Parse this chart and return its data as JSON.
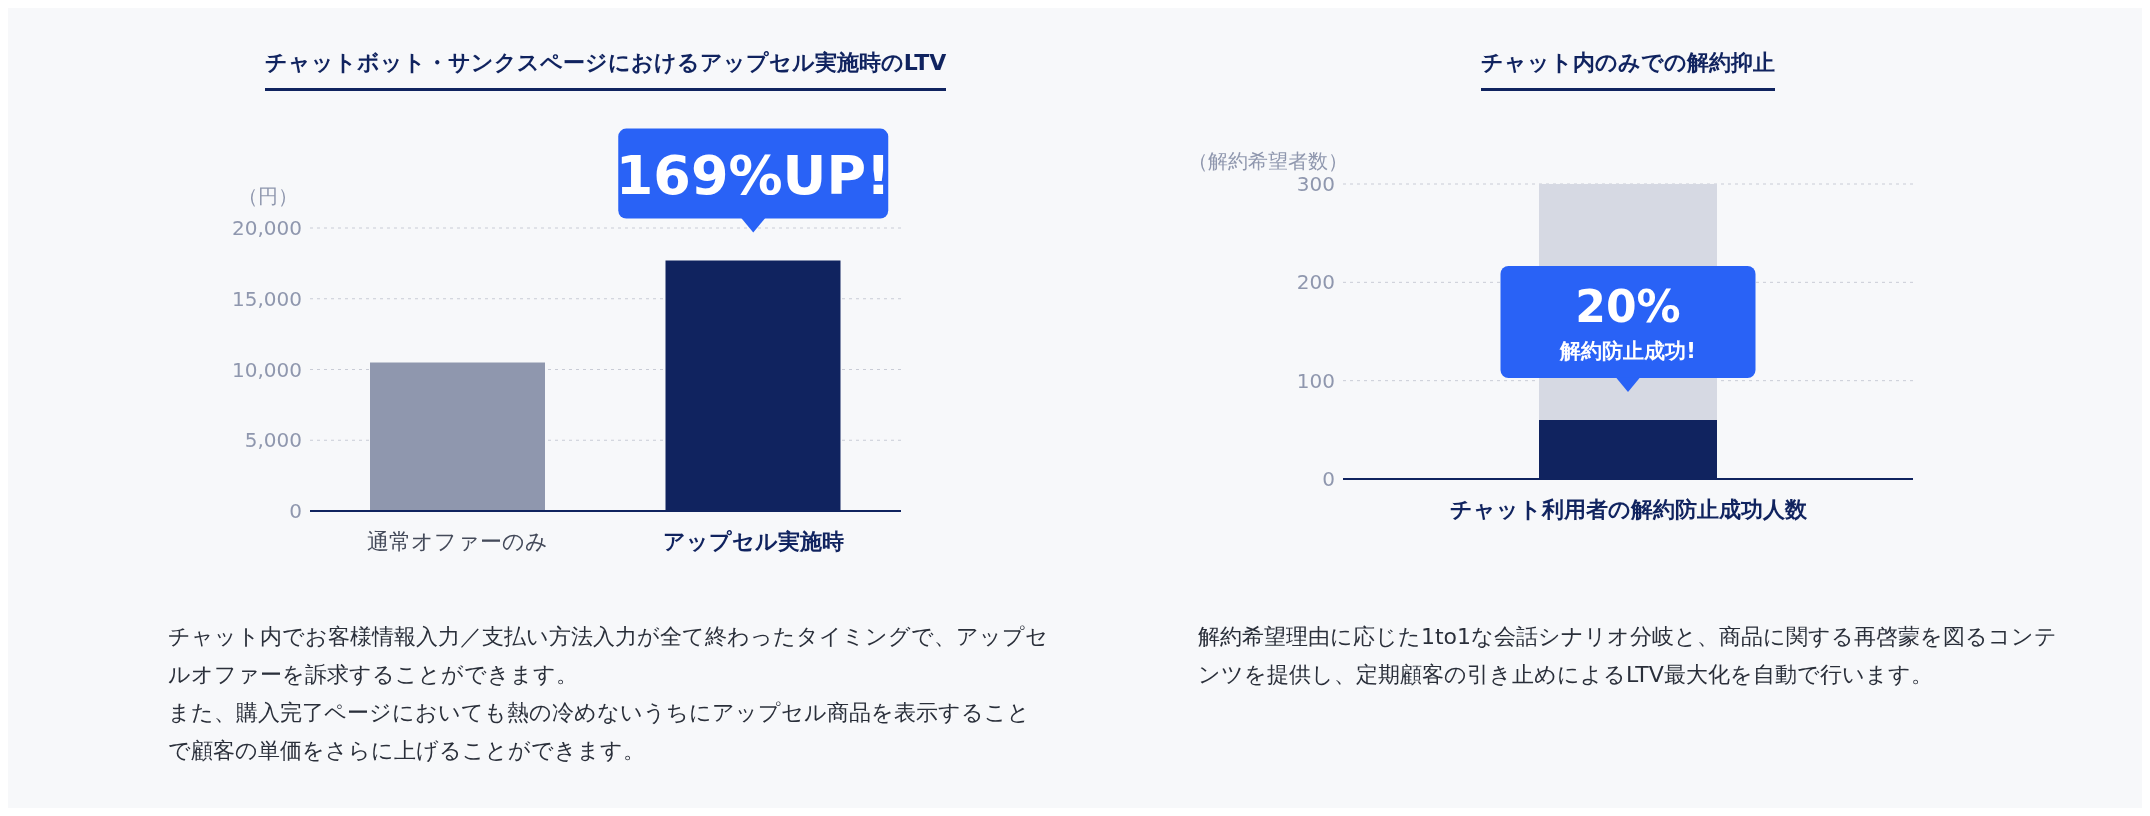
{
  "chart_data": [
    {
      "type": "bar",
      "title": "チャットボット・サンクスページにおけるアップセル実施時のLTV",
      "ylabel": "（円）",
      "categories": [
        "通常オファーのみ",
        "アップセル実施時"
      ],
      "values": [
        10500,
        17700
      ],
      "colors": [
        "#8f97ae",
        "#10235f"
      ],
      "ylim": [
        0,
        20000
      ],
      "yticks": [
        {
          "value": 0,
          "label": "0"
        },
        {
          "value": 5000,
          "label": "5,000"
        },
        {
          "value": 10000,
          "label": "10,000"
        },
        {
          "value": 15000,
          "label": "15,000"
        },
        {
          "value": 20000,
          "label": "20,000"
        }
      ],
      "grid": "y",
      "legend": false,
      "annotations": [
        {
          "text": "169%UP!",
          "x": "アップセル実施時",
          "y": 17700
        },
        "チャット内でお客様情報入力／支払い方法入力が全て終わったタイミングで、アップセルオファーを訴求することができます。",
        "また、購入完了ページにおいても熱の冷めないうちにアップセル商品を表示することで顧客の単価をさらに上げることができます。"
      ]
    },
    {
      "type": "bar",
      "title": "チャット内のみでの解約抑止",
      "ylabel": "（解約希望者数）",
      "categories": [
        "チャット利用者の解約防止成功人数"
      ],
      "stacked": true,
      "series": [
        {
          "color": "#10235f",
          "values": [
            60
          ]
        },
        {
          "color": "#d6d9e3",
          "values": [
            240
          ]
        }
      ],
      "ylim": [
        0,
        300
      ],
      "yticks": [
        0,
        100,
        200,
        300
      ],
      "grid": "y",
      "legend": false,
      "annotations": [
        {
          "text": "20%",
          "x": "チャット利用者の解約防止成功人数",
          "y": 60
        },
        {
          "text": "解約防止成功!",
          "x": "チャット利用者の解約防止成功人数",
          "y": 60
        },
        "解約希望理由に応じた1to1な会話シナリオ分岐と、商品に関する再啓蒙を図るコンテンツを提供し、定期顧客の引き止めによるLTV最大化を自動で行います。"
      ]
    }
  ]
}
